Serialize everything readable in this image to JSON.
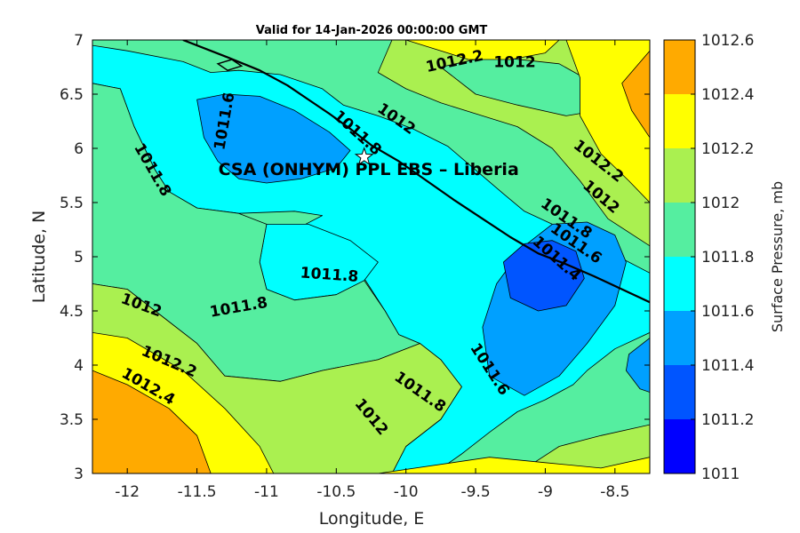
{
  "chart_data": {
    "type": "heatmap",
    "subtype": "filled-contour",
    "title": "Valid for 14-Jan-2026 00:00:00 GMT",
    "xlabel": "Longitude, E",
    "ylabel": "Latitude, N",
    "xlim": [
      -12.25,
      -8.25
    ],
    "ylim": [
      3,
      7
    ],
    "xticks": [
      -12,
      -11.5,
      -11,
      -10.5,
      -10,
      -9.5,
      -9,
      -8.5
    ],
    "yticks": [
      3,
      3.5,
      4,
      4.5,
      5,
      5.5,
      6,
      6.5,
      7
    ],
    "xtick_labels": [
      "-12",
      "-11.5",
      "-11",
      "-10.5",
      "-10",
      "-9.5",
      "-9",
      "-8.5"
    ],
    "ytick_labels": [
      "3",
      "3.5",
      "4",
      "4.5",
      "5",
      "5.5",
      "6",
      "6.5",
      "7"
    ],
    "colorbar": {
      "label": "Surface Pressure, mb",
      "levels": [
        1011,
        1011.2,
        1011.4,
        1011.6,
        1011.8,
        1012,
        1012.2,
        1012.4,
        1012.6
      ],
      "level_labels": [
        "1011",
        "1011.2",
        "1011.4",
        "1011.6",
        "1011.8",
        "1012",
        "1012.2",
        "1012.4",
        "1012.6"
      ],
      "colors": [
        "#0000ff",
        "#0055ff",
        "#00a0ff",
        "#00ffff",
        "#55eea0",
        "#aaf050",
        "#ffff00",
        "#ffaa00",
        "#ff5500"
      ]
    },
    "pressure_centers": [
      {
        "kind": "low",
        "lon": -9.0,
        "lat": 4.9,
        "value": 1011.25
      },
      {
        "kind": "low",
        "lon": -11.0,
        "lat": 6.05,
        "value": 1011.45
      },
      {
        "kind": "low",
        "lon": -8.3,
        "lat": 4.0,
        "value": 1011.45
      },
      {
        "kind": "high",
        "lon": -12.3,
        "lat": 3.1,
        "value": 1012.45
      },
      {
        "kind": "high",
        "lon": -8.25,
        "lat": 6.6,
        "value": 1012.3
      },
      {
        "kind": "high",
        "lon": -9.8,
        "lat": 6.95,
        "value": 1012.25
      }
    ],
    "contour_labels": [
      {
        "text": "1012.2",
        "lon": -9.65,
        "lat": 6.8,
        "angle": -12
      },
      {
        "text": "1012",
        "lon": -9.22,
        "lat": 6.79,
        "angle": 0
      },
      {
        "text": "1011.6",
        "lon": -11.3,
        "lat": 6.25,
        "angle": -80
      },
      {
        "text": "1012",
        "lon": -10.07,
        "lat": 6.27,
        "angle": 35
      },
      {
        "text": "1011.8",
        "lon": -10.35,
        "lat": 6.14,
        "angle": 42
      },
      {
        "text": "1012.2",
        "lon": -8.62,
        "lat": 5.88,
        "angle": 38
      },
      {
        "text": "1011.8",
        "lon": -11.82,
        "lat": 5.8,
        "angle": 60
      },
      {
        "text": "1012",
        "lon": -8.6,
        "lat": 5.55,
        "angle": 40
      },
      {
        "text": "1011.8",
        "lon": -8.85,
        "lat": 5.35,
        "angle": 35
      },
      {
        "text": "1011.6",
        "lon": -8.78,
        "lat": 5.12,
        "angle": 35
      },
      {
        "text": "1011.4",
        "lon": -8.92,
        "lat": 4.98,
        "angle": 42
      },
      {
        "text": "1011.8",
        "lon": -10.55,
        "lat": 4.83,
        "angle": 4
      },
      {
        "text": "1012",
        "lon": -11.9,
        "lat": 4.55,
        "angle": 20
      },
      {
        "text": "1011.8",
        "lon": -11.2,
        "lat": 4.53,
        "angle": -10
      },
      {
        "text": "1012.2",
        "lon": -11.7,
        "lat": 4.03,
        "angle": 23
      },
      {
        "text": "1012.4",
        "lon": -11.85,
        "lat": 3.8,
        "angle": 30
      },
      {
        "text": "1011.6",
        "lon": -9.4,
        "lat": 3.96,
        "angle": 57
      },
      {
        "text": "1011.8",
        "lon": -9.9,
        "lat": 3.75,
        "angle": 35
      },
      {
        "text": "1012",
        "lon": -10.25,
        "lat": 3.52,
        "angle": 50
      }
    ],
    "annotation": {
      "text": "CSA (ONHYM) PPL EBS  – Liberia",
      "lon": -10.3,
      "lat": 5.92,
      "marker": "star"
    }
  }
}
